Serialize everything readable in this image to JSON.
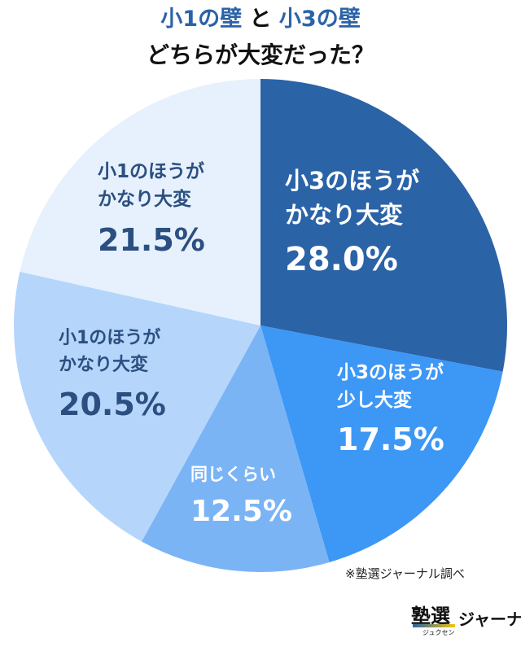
{
  "title": {
    "part1": "小1の壁",
    "connector": "と",
    "part2": "小3の壁",
    "question": "どちらが大変だった？"
  },
  "chart_data": {
    "type": "pie",
    "slices": [
      {
        "label_lines": [
          "小3のほうが",
          "かなり大変"
        ],
        "value": 28.0,
        "value_text": "28.0%",
        "color": "#2b63a7",
        "text_color": "#ffffff"
      },
      {
        "label_lines": [
          "小3のほうが",
          "少し大変"
        ],
        "value": 17.5,
        "value_text": "17.5%",
        "color": "#3d97f5",
        "text_color": "#ffffff"
      },
      {
        "label_lines": [
          "同じくらい"
        ],
        "value": 12.5,
        "value_text": "12.5%",
        "color": "#7ab4f5",
        "text_color": "#ffffff"
      },
      {
        "label_lines": [
          "小1のほうが",
          "かなり大変"
        ],
        "value": 20.5,
        "value_text": "20.5%",
        "color": "#b5d5fb",
        "text_color": "#2b4f80"
      },
      {
        "label_lines": [
          "小1のほうが",
          "かなり大変"
        ],
        "value": 21.5,
        "value_text": "21.5%",
        "color": "#e6f1fd",
        "text_color": "#2b4f80"
      }
    ]
  },
  "source_note": "※塾選ジャーナル調べ",
  "brand": {
    "kanji": "塾選",
    "ruby": "ジュクセン",
    "kana": "ジャーナル"
  }
}
